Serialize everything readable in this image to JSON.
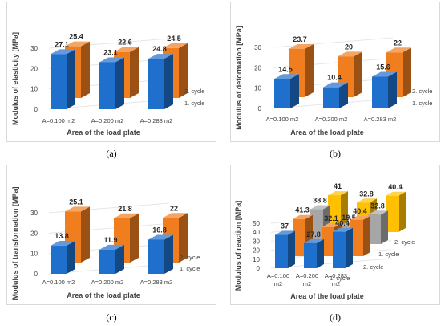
{
  "colors": {
    "cycle1": "#1f6fcd",
    "cycle2": "#f07d1e",
    "cycle3": "#a6a6a6",
    "cycle4": "#ffc000"
  },
  "captions": {
    "a": "(a)",
    "b": "(b)",
    "c": "(c)",
    "d": "(d)"
  },
  "chart_data": [
    {
      "type": "bar",
      "panel": "a",
      "categories": [
        "A=0.100 m2",
        "A=0.200 m2",
        "A=0.283 m2"
      ],
      "series": [
        {
          "name": "1. cycle",
          "values": [
            27.1,
            23.1,
            24.8
          ],
          "color": "#1f6fcd"
        },
        {
          "name": "2. cycle",
          "values": [
            25.4,
            22.6,
            24.5
          ],
          "color": "#f07d1e"
        }
      ],
      "ylabel": "Modulus of elasticity [MPa]",
      "xlabel": "Area of the load plate",
      "ylim": [
        0,
        30
      ],
      "yticks": [
        0,
        10,
        20,
        30
      ],
      "grid": true
    },
    {
      "type": "bar",
      "panel": "b",
      "categories": [
        "A=0.100 m2",
        "A=0.200 m2",
        "A=0.283 m2"
      ],
      "series": [
        {
          "name": "1. cycle",
          "values": [
            14.5,
            10.4,
            15.6
          ],
          "color": "#1f6fcd"
        },
        {
          "name": "2. cycle",
          "values": [
            23.7,
            20,
            22
          ],
          "color": "#f07d1e"
        }
      ],
      "ylabel": "Modulus of deformation [MPa]",
      "xlabel": "Area of the load plate",
      "ylim": [
        0,
        30
      ],
      "yticks": [
        0,
        10,
        20,
        30
      ],
      "grid": true
    },
    {
      "type": "bar",
      "panel": "c",
      "categories": [
        "A=0.100 m2",
        "A=0.200 m2",
        "A=0.283 m2"
      ],
      "series": [
        {
          "name": "1. cycle",
          "values": [
            13.8,
            11.9,
            16.8
          ],
          "color": "#1f6fcd"
        },
        {
          "name": "2. cycle",
          "values": [
            25.1,
            21.8,
            22
          ],
          "color": "#f07d1e"
        }
      ],
      "ylabel": "Modulus of transformation [MPa]",
      "xlabel": "Area of the load plate",
      "ylim": [
        0,
        30
      ],
      "yticks": [
        0,
        10,
        20,
        30
      ],
      "grid": true
    },
    {
      "type": "bar",
      "panel": "d",
      "categories": [
        "A=0.100 m2",
        "A=0.200 m2",
        "A=0.283 m2"
      ],
      "series": [
        {
          "name": "1. cycle",
          "values": [
            37,
            27.8,
            40.4
          ],
          "color": "#1f6fcd"
        },
        {
          "name": "2. cycle",
          "values": [
            41.3,
            32.1,
            40.4
          ],
          "color": "#f07d1e"
        },
        {
          "name": "1. cycle",
          "values": [
            38.8,
            19.5,
            32.8
          ],
          "color": "#a6a6a6"
        },
        {
          "name": "2. cycle",
          "values": [
            41,
            32.8,
            40.4
          ],
          "color": "#ffc000"
        }
      ],
      "ylabel": "Modulus of reaction [MPa]",
      "xlabel": "Area of the load plate",
      "ylim": [
        0,
        50
      ],
      "yticks": [
        0,
        10,
        20,
        30,
        40,
        50
      ],
      "grid": true
    }
  ]
}
